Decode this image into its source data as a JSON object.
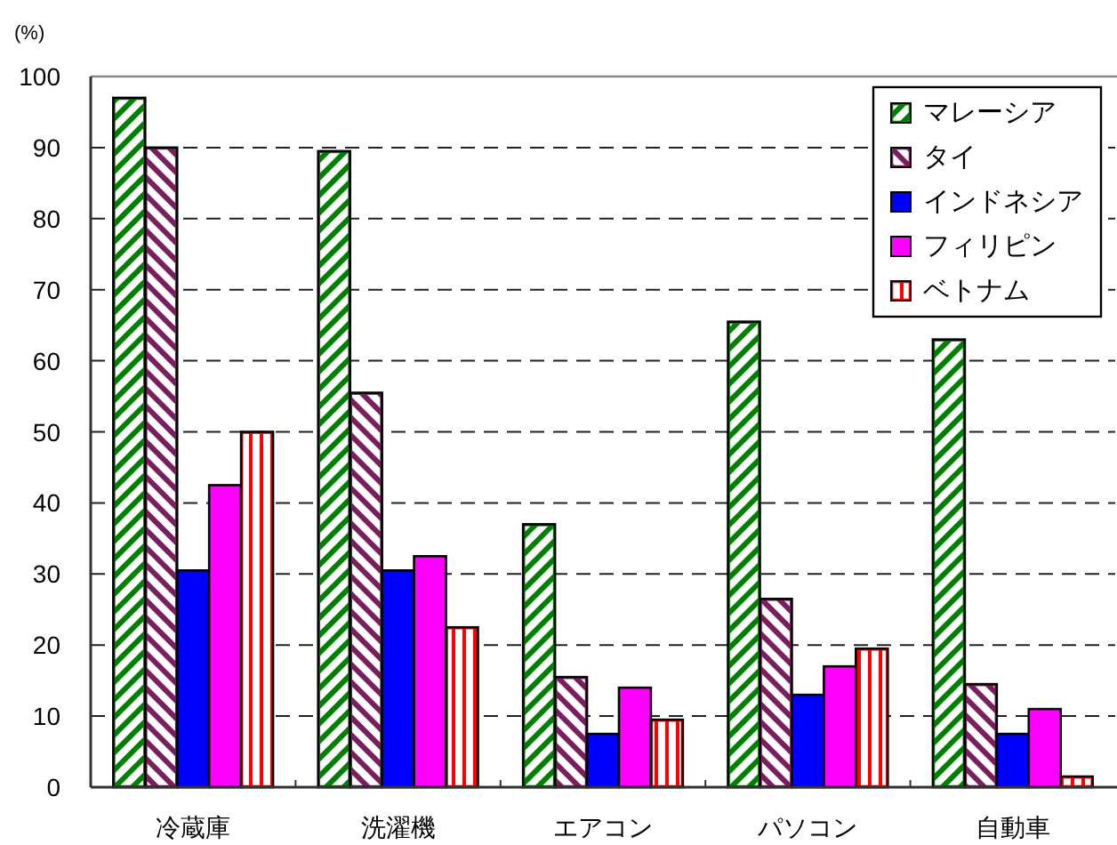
{
  "chart_data": {
    "type": "bar",
    "ylabel": "(%)",
    "categories": [
      "冷蔵庫",
      "洗濯機",
      "エアコン",
      "パソコン",
      "自動車"
    ],
    "series": [
      {
        "name": "マレーシア",
        "color": "#008000",
        "values": [
          97,
          89.5,
          37,
          65.5,
          63
        ]
      },
      {
        "name": "タイ",
        "color": "#7a1e5e",
        "values": [
          90,
          55.5,
          15.5,
          26.5,
          14.5
        ]
      },
      {
        "name": "インドネシア",
        "color": "#0000ff",
        "values": [
          30.5,
          30.5,
          7.5,
          13,
          7.5
        ]
      },
      {
        "name": "フィリピン",
        "color": "#ff00ff",
        "values": [
          42.5,
          32.5,
          14,
          17,
          11
        ]
      },
      {
        "name": "ベトナム",
        "color": "#ff0000",
        "values": [
          50,
          22.5,
          9.5,
          19.5,
          1.5
        ]
      }
    ],
    "ylim": [
      0,
      100
    ],
    "yticks": [
      0,
      10,
      20,
      30,
      40,
      50,
      60,
      70,
      80,
      90,
      100
    ],
    "grid": "y",
    "legend": "top right"
  }
}
